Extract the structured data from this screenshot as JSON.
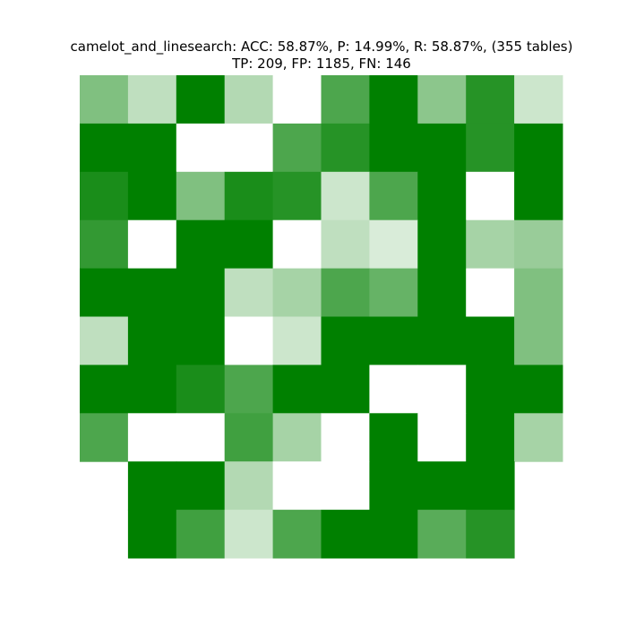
{
  "chart_data": {
    "type": "heatmap",
    "title_lines": [
      "camelot_and_linesearch: ACC: 58.87%, P: 14.99%, R: 58.87%, (355 tables)",
      "TP: 209, FP: 1185, FN: 146"
    ],
    "xlabel": "",
    "ylabel": "",
    "rows": 10,
    "cols": 10,
    "grid": false,
    "colormap": {
      "low": "#ffffff",
      "high": "#008000"
    },
    "value_range": [
      0,
      1
    ],
    "values": [
      [
        0.5,
        0.25,
        1.0,
        0.3,
        0.0,
        0.7,
        1.0,
        0.45,
        0.85,
        0.2
      ],
      [
        1.0,
        1.0,
        0.0,
        0.0,
        0.7,
        0.85,
        1.0,
        1.0,
        0.85,
        1.0
      ],
      [
        0.9,
        1.0,
        0.5,
        0.9,
        0.85,
        0.2,
        0.7,
        1.0,
        0.0,
        1.0
      ],
      [
        0.8,
        0.0,
        1.0,
        1.0,
        0.0,
        0.25,
        0.15,
        1.0,
        0.35,
        0.4
      ],
      [
        1.0,
        1.0,
        1.0,
        0.25,
        0.35,
        0.7,
        0.6,
        1.0,
        0.0,
        0.5
      ],
      [
        0.25,
        1.0,
        1.0,
        0.0,
        0.2,
        1.0,
        1.0,
        1.0,
        1.0,
        0.5
      ],
      [
        1.0,
        1.0,
        0.9,
        0.7,
        1.0,
        1.0,
        0.0,
        0.0,
        1.0,
        1.0
      ],
      [
        0.7,
        0.0,
        0.0,
        0.75,
        0.35,
        0.0,
        1.0,
        0.0,
        1.0,
        0.35
      ],
      [
        null,
        1.0,
        1.0,
        0.3,
        0.0,
        0.0,
        1.0,
        1.0,
        1.0,
        null
      ],
      [
        null,
        1.0,
        0.75,
        0.2,
        0.7,
        1.0,
        1.0,
        0.65,
        0.85,
        null
      ]
    ]
  }
}
